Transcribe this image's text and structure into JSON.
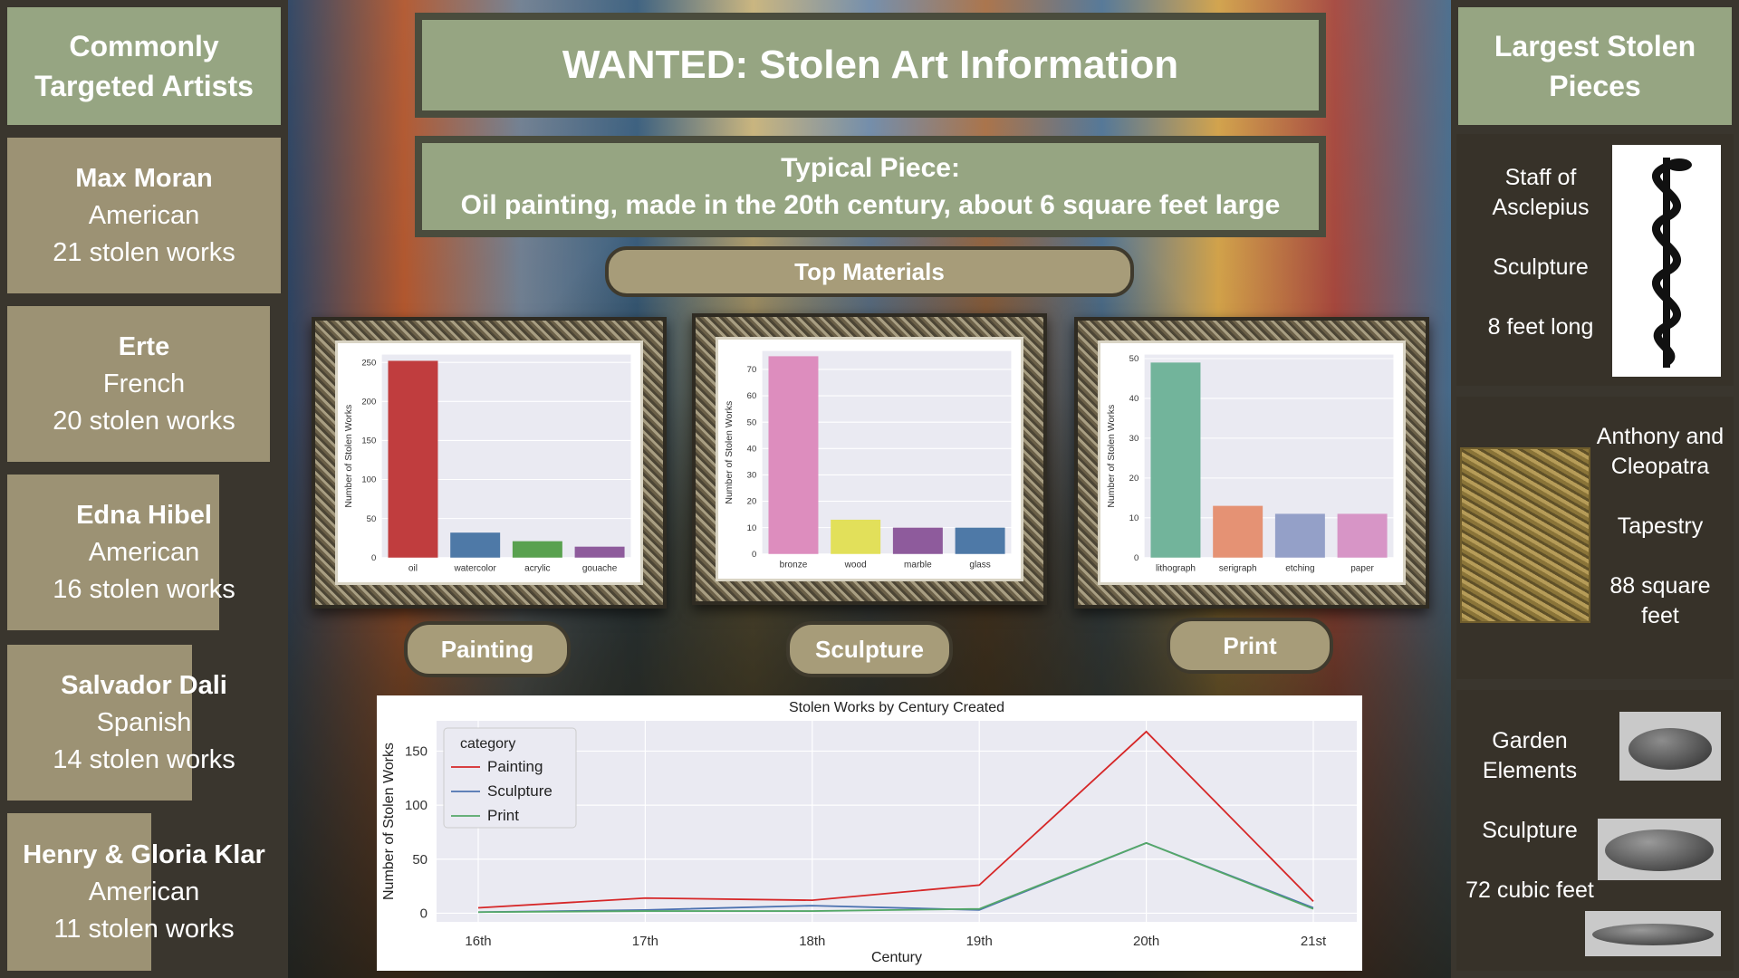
{
  "left_panel": {
    "title": "Commonly Targeted Artists",
    "artists": [
      {
        "name": "Max Moran",
        "nationality": "American",
        "count_text": "21 stolen works",
        "count": 21
      },
      {
        "name": "Erte",
        "nationality": "French",
        "count_text": "20 stolen works",
        "count": 20
      },
      {
        "name": "Edna Hibel",
        "nationality": "American",
        "count_text": "16 stolen works",
        "count": 16
      },
      {
        "name": "Salvador Dali",
        "nationality": "Spanish",
        "count_text": "14 stolen works",
        "count": 14
      },
      {
        "name": "Henry & Gloria Klar",
        "nationality": "American",
        "count_text": "11 stolen works",
        "count": 11
      }
    ]
  },
  "header": {
    "title": "WANTED: Stolen Art Information",
    "typical_label": "Typical Piece:",
    "typical_desc": "Oil painting, made in the 20th century, about 6 square feet large"
  },
  "materials_label": "Top Materials",
  "category_buttons": {
    "painting": "Painting",
    "sculpture": "Sculpture",
    "print": "Print"
  },
  "right_panel": {
    "title": "Largest Stolen Pieces",
    "pieces": [
      {
        "name": "Staff of Asclepius",
        "type": "Sculpture",
        "size": "8 feet long"
      },
      {
        "name": "Anthony and Cleopatra",
        "type": "Tapestry",
        "size": "88 square feet"
      },
      {
        "name": "Garden Elements",
        "type": "Sculpture",
        "size": "72 cubic feet"
      }
    ]
  },
  "colors": {
    "sage": "#96a582",
    "tan": "#9c9274",
    "dark": "#3a362e",
    "plot_bg": "#eaeaf2"
  },
  "chart_data": [
    {
      "type": "bar",
      "ylabel": "Number of Stolen Works",
      "categories": [
        "oil",
        "watercolor",
        "acrylic",
        "gouache"
      ],
      "values": [
        252,
        32,
        21,
        14
      ],
      "colors": [
        "#c03d3e",
        "#4e79a7",
        "#59a14f",
        "#8e5b9c"
      ],
      "ylim": [
        0,
        260
      ],
      "yticks": [
        0,
        50,
        100,
        150,
        200,
        250
      ]
    },
    {
      "type": "bar",
      "ylabel": "Number of Stolen Works",
      "categories": [
        "bronze",
        "wood",
        "marble",
        "glass"
      ],
      "values": [
        75,
        13,
        10,
        10
      ],
      "colors": [
        "#dd8dbe",
        "#e2e05a",
        "#8e5b9c",
        "#4e79a7"
      ],
      "ylim": [
        0,
        77
      ],
      "yticks": [
        0,
        10,
        20,
        30,
        40,
        50,
        60,
        70
      ]
    },
    {
      "type": "bar",
      "ylabel": "Number of Stolen Works",
      "categories": [
        "lithograph",
        "serigraph",
        "etching",
        "paper"
      ],
      "values": [
        49,
        13,
        11,
        11
      ],
      "colors": [
        "#72b49b",
        "#e59274",
        "#94a0c8",
        "#d795c6"
      ],
      "ylim": [
        0,
        51
      ],
      "yticks": [
        0,
        10,
        20,
        30,
        40,
        50
      ]
    },
    {
      "type": "line",
      "title": "Stolen Works by Century Created",
      "xlabel": "Century",
      "ylabel": "Number of Stolen Works",
      "legend_title": "category",
      "legend_position": "top-left",
      "categories": [
        "16th",
        "17th",
        "18th",
        "19th",
        "20th",
        "21st"
      ],
      "ylim": [
        -8,
        178
      ],
      "yticks": [
        0,
        50,
        100,
        150
      ],
      "series": [
        {
          "name": "Painting",
          "color": "#d62728",
          "values": [
            5,
            14,
            12,
            26,
            168,
            11
          ]
        },
        {
          "name": "Sculpture",
          "color": "#4c72b0",
          "values": [
            1,
            3,
            7,
            3,
            65,
            5
          ]
        },
        {
          "name": "Print",
          "color": "#55a868",
          "values": [
            1,
            2,
            2,
            4,
            65,
            4
          ]
        }
      ]
    }
  ]
}
